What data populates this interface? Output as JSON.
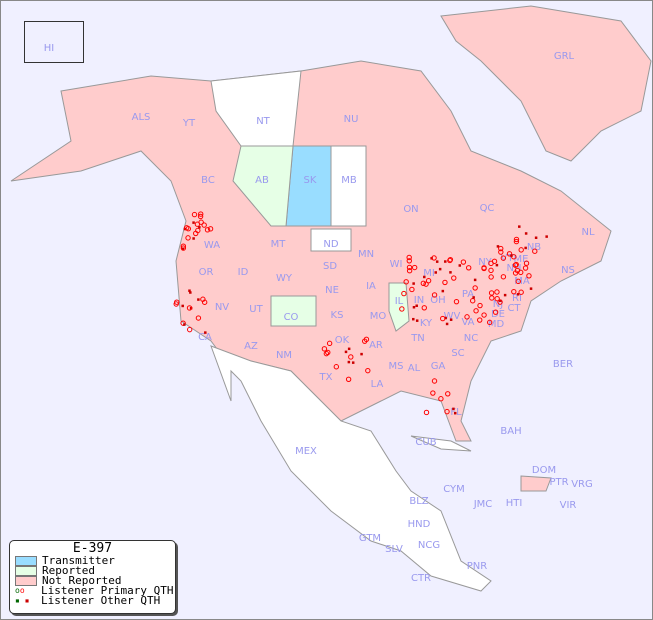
{
  "title": "E-397",
  "colors": {
    "transmitter": "#99ddff",
    "reported": "#e6ffe6",
    "not_reported": "#ffcccc",
    "primary": "#ff0000",
    "other": "#cc0000",
    "ocean": "#f0f0ff",
    "label": "#9999ee"
  },
  "legend": [
    {
      "label": "Transmitter",
      "color": "#99ddff"
    },
    {
      "label": "Reported",
      "color": "#e6ffe6"
    },
    {
      "label": "Not Reported",
      "color": "#ffcccc"
    },
    {
      "label": "Listener Primary QTH",
      "icon": "open-circle"
    },
    {
      "label": "Listener Other QTH",
      "icon": "small-square"
    }
  ],
  "regions": {
    "transmitter": [
      "SK"
    ],
    "reported": [
      "AB",
      "CO",
      "IL"
    ],
    "unreported_white": [
      "NT",
      "MB",
      "ND",
      "MEX"
    ]
  },
  "labels": [
    "HI",
    "ALS",
    "YT",
    "NT",
    "NU",
    "GRL",
    "BC",
    "AB",
    "SK",
    "MB",
    "ON",
    "QC",
    "NL",
    "NS",
    "NB",
    "WA",
    "MT",
    "ND",
    "MN",
    "OR",
    "ID",
    "SD",
    "WI",
    "WY",
    "NE",
    "IA",
    "MI",
    "NV",
    "UT",
    "CO",
    "KS",
    "MO",
    "IL",
    "IN",
    "OH",
    "PA",
    "NY",
    "CA",
    "AZ",
    "NM",
    "OK",
    "AR",
    "TN",
    "KY",
    "WV",
    "VA",
    "MD",
    "DE",
    "NJ",
    "CT",
    "RI",
    "MA",
    "NH",
    "VT",
    "ME",
    "TX",
    "LA",
    "MS",
    "AL",
    "GA",
    "SC",
    "NC",
    "FL",
    "MEX",
    "CUB",
    "BAH",
    "BER",
    "DOM",
    "PTR",
    "VRG",
    "CYM",
    "JMC",
    "HTI",
    "VIR",
    "BLZ",
    "HND",
    "GTM",
    "SLV",
    "NCG",
    "CTR",
    "PNR"
  ]
}
